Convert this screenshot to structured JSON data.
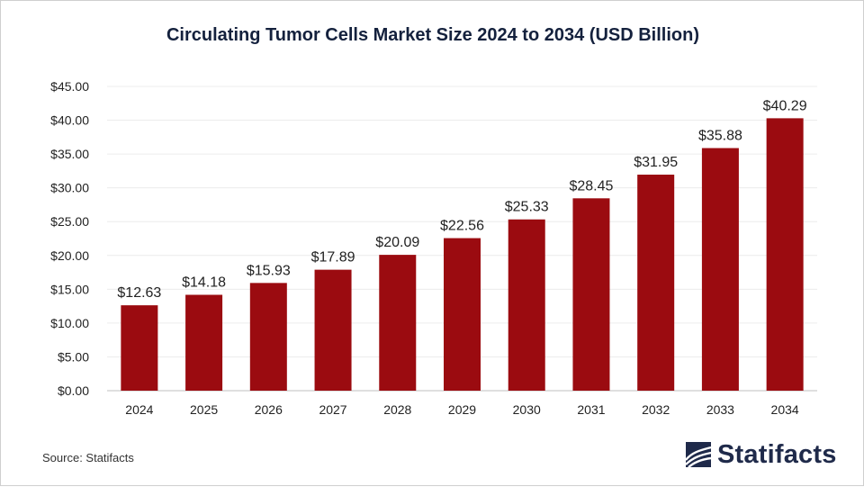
{
  "chart_data": {
    "type": "bar",
    "title": "Circulating Tumor Cells Market Size 2024 to 2034 (USD Billion)",
    "xlabel": "",
    "ylabel": "",
    "categories": [
      "2024",
      "2025",
      "2026",
      "2027",
      "2028",
      "2029",
      "2030",
      "2031",
      "2032",
      "2033",
      "2034"
    ],
    "values": [
      12.63,
      14.18,
      15.93,
      17.89,
      20.09,
      22.56,
      25.33,
      28.45,
      31.95,
      35.88,
      40.29
    ],
    "data_labels": [
      "$12.63",
      "$14.18",
      "$15.93",
      "$17.89",
      "$20.09",
      "$22.56",
      "$25.33",
      "$28.45",
      "$31.95",
      "$35.88",
      "$40.29"
    ],
    "ylim": [
      0,
      45
    ],
    "yticks": [
      0,
      5,
      10,
      15,
      20,
      25,
      30,
      35,
      40,
      45
    ],
    "ytick_labels": [
      "$0.00",
      "$5.00",
      "$10.00",
      "$15.00",
      "$20.00",
      "$25.00",
      "$30.00",
      "$35.00",
      "$40.00",
      "$45.00"
    ],
    "grid": true,
    "legend": "none",
    "bar_color": "#9b0b10"
  },
  "footer": {
    "source": "Source: Statifacts",
    "brand": "Statifacts",
    "brand_icon": "statifacts-logo-icon"
  }
}
